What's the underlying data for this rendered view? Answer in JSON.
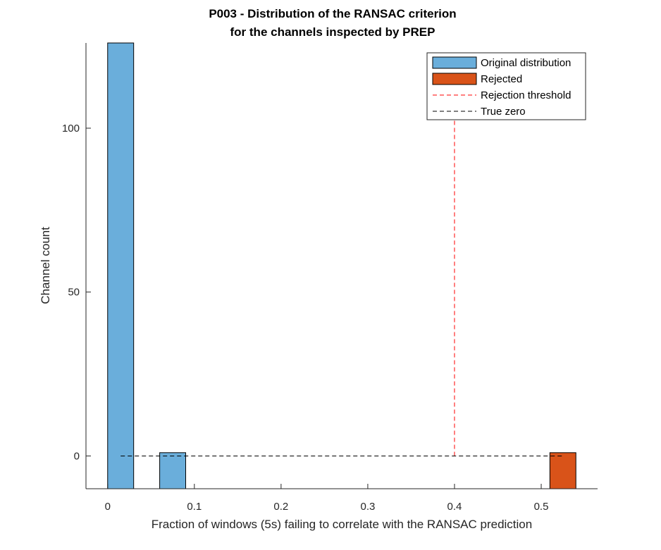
{
  "chart_data": {
    "type": "bar",
    "title": [
      "P003 - Distribution of the RANSAC criterion",
      "for the channels inspected by PREP"
    ],
    "xlabel": "Fraction of windows (5s) failing to correlate with the RANSAC prediction",
    "ylabel": "Channel count",
    "xlim": [
      -0.025,
      0.565
    ],
    "ylim": [
      -10,
      126
    ],
    "xticks": [
      0,
      0.1,
      0.2,
      0.3,
      0.4,
      0.5
    ],
    "xtick_labels": [
      "0",
      "0.1",
      "0.2",
      "0.3",
      "0.4",
      "0.5"
    ],
    "yticks": [
      0,
      50,
      100
    ],
    "ytick_labels": [
      "0",
      "50",
      "100"
    ],
    "grid": false,
    "legend_position": "top-right",
    "bin_width": 0.03,
    "series": [
      {
        "name": "Original distribution",
        "color": "#6aaedb",
        "bins": [
          {
            "x_start": 0.0,
            "x_end": 0.03,
            "count": 126
          },
          {
            "x_start": 0.06,
            "x_end": 0.09,
            "count": 1
          }
        ]
      },
      {
        "name": "Rejected",
        "color": "#d95319",
        "bins": [
          {
            "x_start": 0.51,
            "x_end": 0.54,
            "count": 1
          }
        ]
      }
    ],
    "reference_lines": [
      {
        "name": "Rejection threshold",
        "orientation": "vertical",
        "x": 0.4,
        "y_range": [
          0,
          104
        ],
        "color": "#ff0000",
        "style": "dashed"
      },
      {
        "name": "True zero",
        "orientation": "horizontal",
        "y": 0,
        "x_range": [
          0.015,
          0.525
        ],
        "color": "#000000",
        "style": "dashed"
      }
    ]
  }
}
